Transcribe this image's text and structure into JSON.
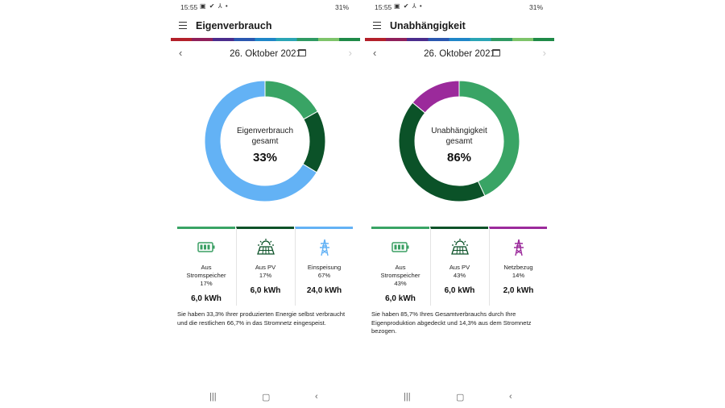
{
  "left": {
    "status": {
      "time": "15:55",
      "right": "31%",
      "icons": "▣ ✔ ⅄ •"
    },
    "title": "Eigenverbrauch",
    "date": "26. Oktober 2021",
    "center_label_1": "Eigenverbrauch",
    "center_label_2": "gesamt",
    "center_value": "33%",
    "chart_data": {
      "type": "pie",
      "donut": true,
      "slices": [
        {
          "label": "Aus Stromspeicher",
          "value": 17,
          "color": "#39a465"
        },
        {
          "label": "Aus PV",
          "value": 17,
          "color": "#0b5228"
        },
        {
          "label": "Einspeisung",
          "value": 67,
          "color": "#63b2f5"
        }
      ]
    },
    "cards": [
      {
        "label1": "Aus",
        "label2": "Stromspeicher",
        "pct": "17%",
        "value": "6,0 kWh",
        "color": "#39a465",
        "icon": "battery-icon"
      },
      {
        "label1": "Aus PV",
        "pct": "17%",
        "value": "6,0 kWh",
        "color": "#0b5228",
        "icon": "solar-panel-icon"
      },
      {
        "label1": "Einspeisung",
        "pct": "67%",
        "value": "24,0 kWh",
        "color": "#63b2f5",
        "icon": "power-tower-icon"
      }
    ],
    "description": "Sie haben 33,3% Ihrer produzierten Energie selbst verbraucht und die restlichen 66,7% in das Stromnetz eingespeist."
  },
  "right": {
    "status": {
      "time": "15:55",
      "right": "31%",
      "icons": "▣ ✔ ⅄ •"
    },
    "title": "Unabhängigkeit",
    "date": "26. Oktober 2021",
    "center_label_1": "Unabhängigkeit",
    "center_label_2": "gesamt",
    "center_value": "86%",
    "chart_data": {
      "type": "pie",
      "donut": true,
      "slices": [
        {
          "label": "Aus Stromspeicher",
          "value": 43,
          "color": "#39a465"
        },
        {
          "label": "Aus PV",
          "value": 43,
          "color": "#0b5228"
        },
        {
          "label": "Netzbezug",
          "value": 14,
          "color": "#9b2a9b"
        }
      ]
    },
    "cards": [
      {
        "label1": "Aus",
        "label2": "Stromspeicher",
        "pct": "43%",
        "value": "6,0 kWh",
        "color": "#39a465",
        "icon": "battery-icon"
      },
      {
        "label1": "Aus PV",
        "pct": "43%",
        "value": "6,0 kWh",
        "color": "#0b5228",
        "icon": "solar-panel-icon"
      },
      {
        "label1": "Netzbezug",
        "pct": "14%",
        "value": "2,0 kWh",
        "color": "#9b2a9b",
        "icon": "power-tower-icon"
      }
    ],
    "description": "Sie haben 85,7% Ihres Gesamtverbrauchs durch Ihre Eigenproduktion abgedeckt und 14,3% aus dem Stromnetz bezogen."
  },
  "colors": {
    "rainbow": [
      "#b3202a",
      "#8f1f5a",
      "#4b2c8c",
      "#2a57b0",
      "#1f86c8",
      "#2aa5b5",
      "#2f9a63",
      "#7ec46a",
      "#1f8a48"
    ]
  }
}
